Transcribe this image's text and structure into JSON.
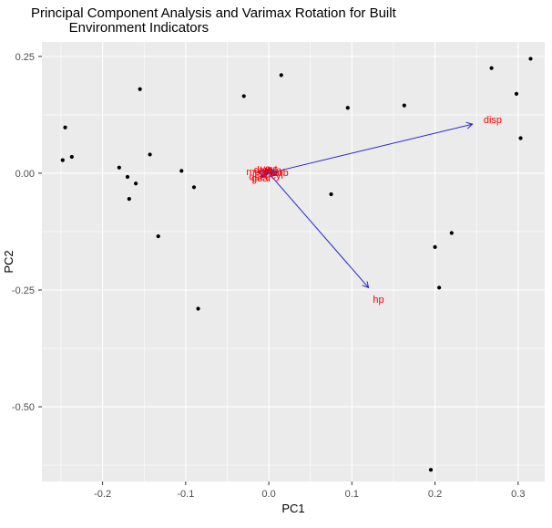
{
  "chart_data": {
    "type": "scatter",
    "title": "Principal Component Analysis and Varimax Rotation for Built\n          Environment Indicators",
    "xlabel": "PC1",
    "ylabel": "PC2",
    "xlim": [
      -0.273,
      0.332
    ],
    "ylim": [
      -0.66,
      0.281
    ],
    "x_ticks": [
      -0.2,
      -0.1,
      0.0,
      0.1,
      0.2,
      0.3
    ],
    "x_tick_labels": [
      "-0.2",
      "-0.1",
      "0.0",
      "0.1",
      "0.2",
      "0.3"
    ],
    "x_minor": [
      -0.25,
      -0.15,
      -0.05,
      0.05,
      0.15,
      0.25
    ],
    "y_ticks": [
      0.25,
      0.0,
      -0.25,
      -0.5
    ],
    "y_tick_labels": [
      "0.25",
      "0.00",
      "-0.25",
      "-0.50"
    ],
    "y_minor": [
      0.125,
      -0.125,
      -0.375,
      -0.625
    ],
    "grid": true,
    "legend": "none",
    "panel_bg": "#EBEBEB",
    "grid_color": "#FFFFFF",
    "tick_color": "#333333",
    "tick_label_color": "#4D4D4D",
    "point_color": "#000000",
    "arrow_color": "#2626CC",
    "label_color": "#FF0000",
    "points": [
      [
        -0.155,
        0.18
      ],
      [
        -0.245,
        0.098
      ],
      [
        -0.237,
        0.035
      ],
      [
        -0.248,
        0.028
      ],
      [
        -0.18,
        0.012
      ],
      [
        -0.17,
        -0.008
      ],
      [
        -0.16,
        -0.022
      ],
      [
        -0.143,
        0.04
      ],
      [
        -0.105,
        0.005
      ],
      [
        -0.168,
        -0.055
      ],
      [
        -0.09,
        -0.03
      ],
      [
        -0.133,
        -0.135
      ],
      [
        -0.085,
        -0.29
      ],
      [
        -0.03,
        0.165
      ],
      [
        0.015,
        0.21
      ],
      [
        0.095,
        0.14
      ],
      [
        0.075,
        -0.045
      ],
      [
        0.163,
        0.145
      ],
      [
        0.2,
        -0.158
      ],
      [
        0.22,
        -0.128
      ],
      [
        0.205,
        -0.245
      ],
      [
        0.268,
        0.225
      ],
      [
        0.315,
        0.245
      ],
      [
        0.298,
        0.17
      ],
      [
        0.303,
        0.075
      ],
      [
        0.195,
        -0.635
      ]
    ],
    "loadings": [
      {
        "label": "disp",
        "x": 0.245,
        "y": 0.105
      },
      {
        "label": "hp",
        "x": 0.12,
        "y": -0.245
      },
      {
        "label": "mpg",
        "x": -0.014,
        "y": 0.003
      },
      {
        "label": "cyl",
        "x": 0.009,
        "y": -0.004
      },
      {
        "label": "drat",
        "x": -0.007,
        "y": 0.007
      },
      {
        "label": "wt",
        "x": 0.004,
        "y": 0.009
      },
      {
        "label": "qsec",
        "x": -0.01,
        "y": -0.006
      },
      {
        "label": "vs",
        "x": -0.004,
        "y": 0.01
      },
      {
        "label": "am",
        "x": 0.006,
        "y": 0.006
      },
      {
        "label": "gear",
        "x": -0.008,
        "y": -0.009
      },
      {
        "label": "carb",
        "x": 0.011,
        "y": 0.002
      }
    ]
  }
}
